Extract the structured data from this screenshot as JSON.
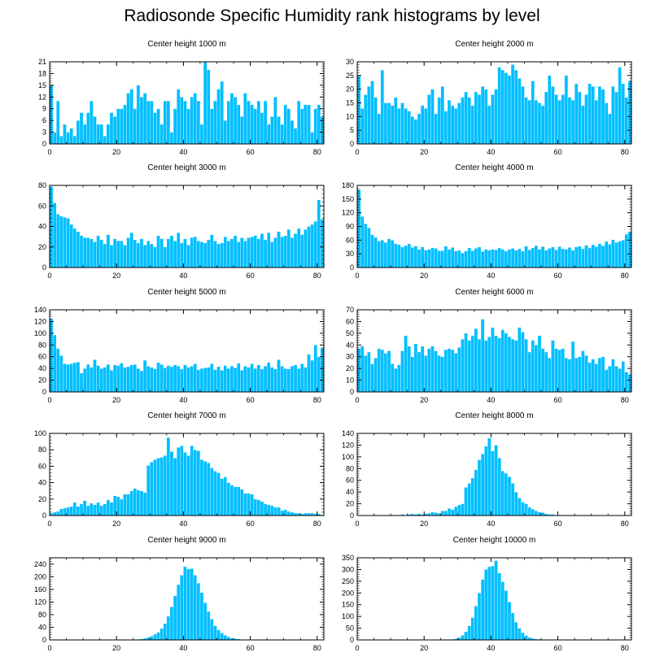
{
  "title": "Radiosonde Specific Humidity rank histograms by level",
  "bar_color": "#00bfff",
  "bar_edge_color": "#ffffff",
  "chart_data": [
    {
      "type": "bar",
      "title": "Center height 1000 m",
      "x_ticks": [
        0,
        20,
        40,
        60,
        80
      ],
      "xlim": [
        0,
        82
      ],
      "ylim": [
        0,
        21
      ],
      "y_ticks": [
        0,
        3,
        6,
        9,
        12,
        15,
        18,
        21
      ],
      "values": [
        15,
        3,
        11,
        2,
        5,
        3,
        4,
        2,
        6,
        8,
        5,
        8,
        11,
        7,
        5,
        5,
        2,
        5,
        8,
        7,
        9,
        9,
        10,
        13,
        14,
        9,
        15,
        12,
        13,
        11,
        11,
        8,
        9,
        5,
        11,
        11,
        3,
        9,
        14,
        12,
        11,
        9,
        12,
        13,
        11,
        5,
        21,
        19,
        9,
        11,
        14,
        16,
        6,
        11,
        13,
        12,
        10,
        7,
        13,
        11,
        10,
        9,
        11,
        8,
        11,
        5,
        7,
        12,
        7,
        5,
        10,
        9,
        6,
        4,
        11,
        9,
        10,
        10,
        3,
        9,
        10,
        7
      ]
    },
    {
      "type": "bar",
      "title": "Center height 2000 m",
      "x_ticks": [
        0,
        20,
        40,
        60,
        80
      ],
      "xlim": [
        0,
        82
      ],
      "ylim": [
        0,
        30
      ],
      "y_ticks": [
        0,
        5,
        10,
        15,
        20,
        25,
        30
      ],
      "values": [
        25,
        13,
        18,
        21,
        23,
        17,
        11,
        27,
        15,
        15,
        14,
        17,
        13,
        15,
        13,
        12,
        10,
        9,
        11,
        14,
        13,
        18,
        20,
        11,
        17,
        21,
        12,
        16,
        14,
        13,
        15,
        17,
        19,
        17,
        14,
        19,
        18,
        21,
        20,
        14,
        18,
        20,
        28,
        27,
        26,
        25,
        29,
        27,
        24,
        21,
        17,
        16,
        23,
        16,
        15,
        14,
        19,
        25,
        21,
        18,
        16,
        18,
        25,
        17,
        16,
        22,
        19,
        14,
        18,
        22,
        21,
        16,
        21,
        20,
        15,
        11,
        21,
        19,
        28,
        22,
        17,
        23
      ]
    },
    {
      "type": "bar",
      "title": "Center height 3000 m",
      "x_ticks": [
        0,
        20,
        40,
        60,
        80
      ],
      "xlim": [
        0,
        82
      ],
      "ylim": [
        0,
        80
      ],
      "y_ticks": [
        0,
        20,
        40,
        60,
        80
      ],
      "values": [
        79,
        63,
        52,
        50,
        49,
        48,
        42,
        38,
        35,
        31,
        29,
        29,
        28,
        25,
        31,
        27,
        23,
        32,
        22,
        28,
        26,
        26,
        22,
        29,
        34,
        27,
        24,
        28,
        22,
        26,
        23,
        20,
        31,
        28,
        20,
        28,
        31,
        26,
        34,
        24,
        28,
        22,
        29,
        30,
        26,
        25,
        24,
        27,
        32,
        26,
        23,
        24,
        30,
        26,
        28,
        31,
        25,
        29,
        26,
        29,
        30,
        31,
        28,
        33,
        27,
        34,
        25,
        29,
        35,
        30,
        31,
        37,
        29,
        33,
        38,
        32,
        37,
        40,
        42,
        45,
        66,
        47
      ]
    },
    {
      "type": "bar",
      "title": "Center height 4000 m",
      "x_ticks": [
        0,
        20,
        40,
        60,
        80
      ],
      "xlim": [
        0,
        82
      ],
      "ylim": [
        0,
        180
      ],
      "y_ticks": [
        0,
        30,
        60,
        90,
        120,
        150,
        180
      ],
      "values": [
        171,
        112,
        96,
        87,
        72,
        66,
        58,
        60,
        55,
        63,
        60,
        52,
        50,
        45,
        48,
        52,
        44,
        47,
        40,
        45,
        38,
        40,
        43,
        42,
        37,
        37,
        47,
        40,
        44,
        36,
        38,
        32,
        36,
        43,
        37,
        42,
        45,
        35,
        40,
        38,
        40,
        39,
        43,
        40,
        36,
        40,
        42,
        38,
        41,
        36,
        47,
        39,
        43,
        48,
        40,
        46,
        38,
        42,
        45,
        39,
        46,
        41,
        40,
        44,
        38,
        45,
        47,
        41,
        49,
        43,
        50,
        46,
        52,
        48,
        57,
        51,
        61,
        55,
        58,
        60,
        73,
        78
      ]
    },
    {
      "type": "bar",
      "title": "Center height 5000 m",
      "x_ticks": [
        0,
        20,
        40,
        60,
        80
      ],
      "xlim": [
        0,
        82
      ],
      "ylim": [
        0,
        140
      ],
      "y_ticks": [
        0,
        20,
        40,
        60,
        80,
        100,
        120,
        140
      ],
      "values": [
        125,
        97,
        74,
        62,
        48,
        47,
        48,
        50,
        51,
        32,
        40,
        47,
        42,
        55,
        45,
        40,
        42,
        47,
        37,
        46,
        45,
        49,
        42,
        43,
        46,
        47,
        40,
        36,
        54,
        44,
        42,
        39,
        50,
        47,
        41,
        45,
        43,
        46,
        44,
        39,
        46,
        42,
        44,
        48,
        38,
        40,
        41,
        42,
        48,
        38,
        43,
        37,
        45,
        40,
        44,
        41,
        49,
        37,
        44,
        42,
        48,
        40,
        46,
        39,
        44,
        50,
        42,
        39,
        55,
        44,
        40,
        39,
        44,
        46,
        40,
        48,
        42,
        64,
        54,
        80,
        60,
        75
      ]
    },
    {
      "type": "bar",
      "title": "Center height 6000 m",
      "x_ticks": [
        0,
        20,
        40,
        60,
        80
      ],
      "xlim": [
        0,
        82
      ],
      "ylim": [
        0,
        70
      ],
      "y_ticks": [
        0,
        10,
        20,
        30,
        40,
        50,
        60,
        70
      ],
      "values": [
        37,
        39,
        31,
        34,
        24,
        29,
        37,
        36,
        33,
        35,
        24,
        20,
        23,
        35,
        48,
        39,
        30,
        41,
        34,
        39,
        31,
        37,
        39,
        35,
        31,
        30,
        36,
        37,
        36,
        33,
        38,
        45,
        50,
        44,
        48,
        54,
        45,
        62,
        44,
        47,
        55,
        48,
        46,
        53,
        50,
        47,
        45,
        44,
        55,
        51,
        45,
        34,
        44,
        40,
        48,
        37,
        34,
        29,
        44,
        37,
        36,
        37,
        29,
        28,
        43,
        29,
        30,
        35,
        31,
        25,
        28,
        24,
        29,
        30,
        19,
        22,
        28,
        22,
        20,
        26,
        17,
        15
      ]
    },
    {
      "type": "bar",
      "title": "Center height 7000 m",
      "x_ticks": [
        0,
        20,
        40,
        60,
        80
      ],
      "xlim": [
        0,
        82
      ],
      "ylim": [
        0,
        100
      ],
      "y_ticks": [
        0,
        20,
        40,
        60,
        80,
        100
      ],
      "values": [
        3,
        4,
        5,
        8,
        9,
        10,
        11,
        16,
        11,
        14,
        18,
        12,
        15,
        13,
        16,
        12,
        14,
        19,
        16,
        24,
        23,
        20,
        26,
        26,
        30,
        33,
        31,
        30,
        28,
        61,
        65,
        68,
        70,
        71,
        73,
        95,
        78,
        70,
        83,
        85,
        77,
        73,
        85,
        80,
        79,
        68,
        66,
        64,
        58,
        54,
        52,
        45,
        47,
        40,
        37,
        35,
        35,
        32,
        27,
        27,
        26,
        20,
        19,
        17,
        14,
        13,
        12,
        10,
        10,
        6,
        7,
        5,
        4,
        3,
        3,
        2,
        3,
        3,
        3,
        2,
        2,
        1
      ]
    },
    {
      "type": "bar",
      "title": "Center height 8000 m",
      "x_ticks": [
        0,
        20,
        40,
        60,
        80
      ],
      "xlim": [
        0,
        82
      ],
      "ylim": [
        0,
        140
      ],
      "y_ticks": [
        0,
        20,
        40,
        60,
        80,
        100,
        120,
        140
      ],
      "values": [
        0,
        0,
        0,
        0,
        0,
        0,
        0,
        0,
        0,
        0,
        0,
        0,
        1,
        2,
        1,
        2,
        3,
        2,
        3,
        2,
        3,
        4,
        6,
        5,
        4,
        8,
        8,
        12,
        10,
        15,
        18,
        20,
        48,
        55,
        64,
        78,
        95,
        105,
        118,
        132,
        110,
        120,
        98,
        76,
        72,
        66,
        55,
        40,
        30,
        23,
        20,
        14,
        11,
        8,
        6,
        5,
        3,
        2,
        2,
        1,
        1,
        0,
        0,
        0,
        0,
        0,
        0,
        0,
        0,
        0,
        0,
        0,
        0,
        0,
        0,
        0,
        0,
        0,
        0,
        0,
        0,
        0
      ]
    },
    {
      "type": "bar",
      "title": "Center height 9000 m",
      "x_ticks": [
        0,
        20,
        40,
        60,
        80
      ],
      "xlim": [
        0,
        82
      ],
      "ylim": [
        0,
        260
      ],
      "y_ticks": [
        0,
        40,
        80,
        120,
        160,
        200,
        240
      ],
      "values": [
        0,
        0,
        0,
        0,
        0,
        0,
        0,
        0,
        0,
        0,
        0,
        0,
        0,
        0,
        0,
        0,
        0,
        0,
        0,
        0,
        0,
        0,
        0,
        0,
        0,
        1,
        2,
        3,
        5,
        8,
        12,
        18,
        24,
        36,
        52,
        75,
        105,
        140,
        175,
        205,
        232,
        225,
        226,
        205,
        180,
        150,
        118,
        90,
        66,
        45,
        32,
        22,
        15,
        10,
        6,
        4,
        3,
        2,
        1,
        1,
        0,
        0,
        0,
        0,
        0,
        0,
        0,
        0,
        0,
        0,
        0,
        0,
        0,
        0,
        0,
        0,
        0,
        0,
        0,
        0,
        0,
        0
      ]
    },
    {
      "type": "bar",
      "title": "Center height 10000 m",
      "x_ticks": [
        0,
        20,
        40,
        60,
        80
      ],
      "xlim": [
        0,
        82
      ],
      "ylim": [
        0,
        350
      ],
      "y_ticks": [
        0,
        50,
        100,
        150,
        200,
        250,
        300,
        350
      ],
      "values": [
        0,
        0,
        0,
        0,
        0,
        0,
        0,
        0,
        0,
        0,
        0,
        0,
        0,
        0,
        0,
        0,
        0,
        0,
        0,
        0,
        0,
        0,
        0,
        0,
        0,
        0,
        1,
        2,
        3,
        5,
        10,
        20,
        35,
        60,
        95,
        145,
        200,
        258,
        300,
        312,
        315,
        338,
        285,
        248,
        210,
        162,
        115,
        76,
        50,
        31,
        19,
        11,
        7,
        4,
        3,
        2,
        1,
        1,
        0,
        0,
        0,
        0,
        0,
        0,
        0,
        0,
        0,
        0,
        0,
        0,
        0,
        0,
        0,
        0,
        0,
        0,
        0,
        0,
        0,
        0,
        0,
        0
      ]
    }
  ]
}
